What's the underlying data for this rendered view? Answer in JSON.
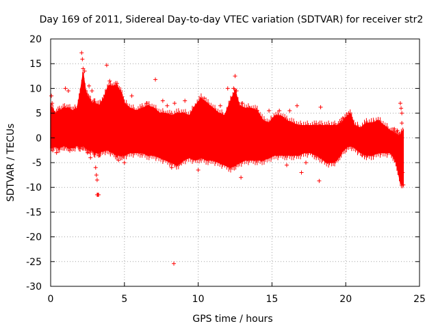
{
  "chart_data": {
    "type": "scatter",
    "title": "Day 169 of 2011, Sidereal Day-to-day VTEC variation (SDTVAR) for receiver str2",
    "xlabel": "GPS time / hours",
    "ylabel": "SDTVAR / TECUs",
    "xlim": [
      0,
      25
    ],
    "ylim": [
      -30,
      20
    ],
    "xticks": [
      "0",
      "5",
      "10",
      "15",
      "20",
      "25"
    ],
    "yticks": [
      "20",
      "15",
      "10",
      "5",
      "0",
      "-5",
      "-10",
      "-15",
      "-20",
      "-25",
      "-30"
    ],
    "grid": true,
    "marker": "+",
    "series": [
      {
        "name": "SDTVAR",
        "color": "#ff0000",
        "band": [
          [
            0.0,
            -2.0,
            6.5
          ],
          [
            0.3,
            -1.8,
            5.0
          ],
          [
            0.6,
            -2.0,
            5.5
          ],
          [
            0.9,
            -1.5,
            6.0
          ],
          [
            1.2,
            -2.0,
            6.0
          ],
          [
            1.5,
            -2.0,
            5.5
          ],
          [
            1.8,
            -1.5,
            6.0
          ],
          [
            2.0,
            -1.8,
            9.0
          ],
          [
            2.2,
            -1.5,
            13.0
          ],
          [
            2.4,
            -2.0,
            9.0
          ],
          [
            2.6,
            -2.5,
            8.0
          ],
          [
            2.8,
            -2.5,
            7.0
          ],
          [
            3.0,
            -3.0,
            7.0
          ],
          [
            3.3,
            -3.0,
            6.5
          ],
          [
            3.6,
            -2.5,
            8.0
          ],
          [
            3.9,
            -2.5,
            10.5
          ],
          [
            4.2,
            -3.0,
            10.5
          ],
          [
            4.5,
            -3.5,
            10.5
          ],
          [
            4.8,
            -3.5,
            9.0
          ],
          [
            5.0,
            -3.5,
            7.0
          ],
          [
            5.4,
            -3.0,
            6.0
          ],
          [
            5.8,
            -3.0,
            5.5
          ],
          [
            6.2,
            -3.0,
            6.0
          ],
          [
            6.6,
            -3.5,
            6.5
          ],
          [
            7.0,
            -3.5,
            6.0
          ],
          [
            7.4,
            -4.0,
            5.0
          ],
          [
            7.8,
            -4.5,
            5.0
          ],
          [
            8.2,
            -5.0,
            4.5
          ],
          [
            8.6,
            -5.5,
            5.0
          ],
          [
            9.0,
            -4.5,
            5.0
          ],
          [
            9.4,
            -4.0,
            4.5
          ],
          [
            9.8,
            -4.5,
            6.5
          ],
          [
            10.2,
            -4.0,
            8.0
          ],
          [
            10.6,
            -4.5,
            7.0
          ],
          [
            11.0,
            -4.5,
            6.0
          ],
          [
            11.4,
            -5.0,
            5.0
          ],
          [
            11.8,
            -5.5,
            4.5
          ],
          [
            12.2,
            -6.0,
            7.5
          ],
          [
            12.5,
            -5.5,
            9.5
          ],
          [
            12.8,
            -5.0,
            6.5
          ],
          [
            13.2,
            -4.5,
            6.0
          ],
          [
            13.6,
            -4.5,
            6.0
          ],
          [
            14.0,
            -4.5,
            5.5
          ],
          [
            14.4,
            -4.5,
            3.5
          ],
          [
            14.8,
            -4.0,
            3.0
          ],
          [
            15.2,
            -3.5,
            4.5
          ],
          [
            15.6,
            -3.5,
            4.5
          ],
          [
            16.0,
            -3.5,
            3.5
          ],
          [
            16.4,
            -3.5,
            3.0
          ],
          [
            16.8,
            -3.5,
            2.5
          ],
          [
            17.2,
            -3.0,
            2.5
          ],
          [
            17.6,
            -3.0,
            2.5
          ],
          [
            18.0,
            -3.5,
            2.5
          ],
          [
            18.3,
            -4.0,
            2.5
          ],
          [
            18.7,
            -5.0,
            2.5
          ],
          [
            19.1,
            -5.0,
            2.5
          ],
          [
            19.4,
            -4.5,
            2.5
          ],
          [
            19.7,
            -3.0,
            3.0
          ],
          [
            20.0,
            -2.0,
            4.0
          ],
          [
            20.3,
            -1.5,
            5.0
          ],
          [
            20.6,
            -2.0,
            2.5
          ],
          [
            21.0,
            -3.0,
            2.0
          ],
          [
            21.4,
            -3.5,
            3.0
          ],
          [
            21.8,
            -3.5,
            3.0
          ],
          [
            22.2,
            -3.0,
            3.5
          ],
          [
            22.6,
            -3.0,
            2.5
          ],
          [
            23.0,
            -3.0,
            1.5
          ],
          [
            23.3,
            -4.0,
            1.0
          ],
          [
            23.5,
            -6.0,
            0.5
          ],
          [
            23.7,
            -9.0,
            0.5
          ],
          [
            23.9,
            -9.5,
            1.5
          ]
        ],
        "points": [
          [
            0.05,
            8.5
          ],
          [
            0.1,
            7.0
          ],
          [
            0.15,
            -2.5
          ],
          [
            0.4,
            -3.0
          ],
          [
            1.0,
            10.0
          ],
          [
            1.2,
            9.5
          ],
          [
            1.3,
            -2.5
          ],
          [
            2.1,
            17.2
          ],
          [
            2.15,
            15.9
          ],
          [
            2.2,
            14.0
          ],
          [
            2.3,
            13.5
          ],
          [
            2.5,
            -3.0
          ],
          [
            2.6,
            10.5
          ],
          [
            2.7,
            -4.0
          ],
          [
            2.8,
            9.5
          ],
          [
            3.05,
            -6.0
          ],
          [
            3.1,
            -7.5
          ],
          [
            3.15,
            -8.5
          ],
          [
            3.15,
            -11.5
          ],
          [
            3.2,
            -11.5
          ],
          [
            3.25,
            -11.5
          ],
          [
            3.3,
            -3.5
          ],
          [
            3.8,
            14.7
          ],
          [
            4.0,
            11.5
          ],
          [
            4.5,
            11.0
          ],
          [
            4.6,
            -4.5
          ],
          [
            5.0,
            -5.0
          ],
          [
            5.5,
            8.5
          ],
          [
            6.5,
            7.0
          ],
          [
            7.1,
            11.8
          ],
          [
            7.6,
            7.5
          ],
          [
            7.9,
            6.5
          ],
          [
            8.2,
            -6.0
          ],
          [
            8.4,
            7.0
          ],
          [
            8.5,
            -5.5
          ],
          [
            8.8,
            -5.0
          ],
          [
            8.35,
            -25.4
          ],
          [
            9.1,
            7.5
          ],
          [
            10.0,
            -6.5
          ],
          [
            10.4,
            8.0
          ],
          [
            11.5,
            6.5
          ],
          [
            12.0,
            10.0
          ],
          [
            12.4,
            10.0
          ],
          [
            12.5,
            12.5
          ],
          [
            12.6,
            9.5
          ],
          [
            12.9,
            -8.0
          ],
          [
            13.0,
            7.0
          ],
          [
            13.5,
            6.0
          ],
          [
            14.0,
            5.5
          ],
          [
            14.3,
            -4.5
          ],
          [
            14.8,
            5.5
          ],
          [
            15.5,
            5.5
          ],
          [
            16.0,
            -5.5
          ],
          [
            16.2,
            5.5
          ],
          [
            16.7,
            6.5
          ],
          [
            17.0,
            -7.0
          ],
          [
            17.3,
            -5.0
          ],
          [
            18.2,
            -8.7
          ],
          [
            18.3,
            6.2
          ],
          [
            19.8,
            4.0
          ],
          [
            20.2,
            5.0
          ],
          [
            21.1,
            -3.5
          ],
          [
            21.5,
            -3.5
          ],
          [
            22.2,
            3.5
          ],
          [
            23.3,
            1.8
          ],
          [
            23.5,
            1.5
          ],
          [
            23.7,
            7.0
          ],
          [
            23.75,
            6.0
          ],
          [
            23.8,
            5.0
          ],
          [
            23.85,
            -7.0
          ],
          [
            23.9,
            -9.5
          ],
          [
            23.8,
            3.0
          ]
        ]
      }
    ]
  }
}
